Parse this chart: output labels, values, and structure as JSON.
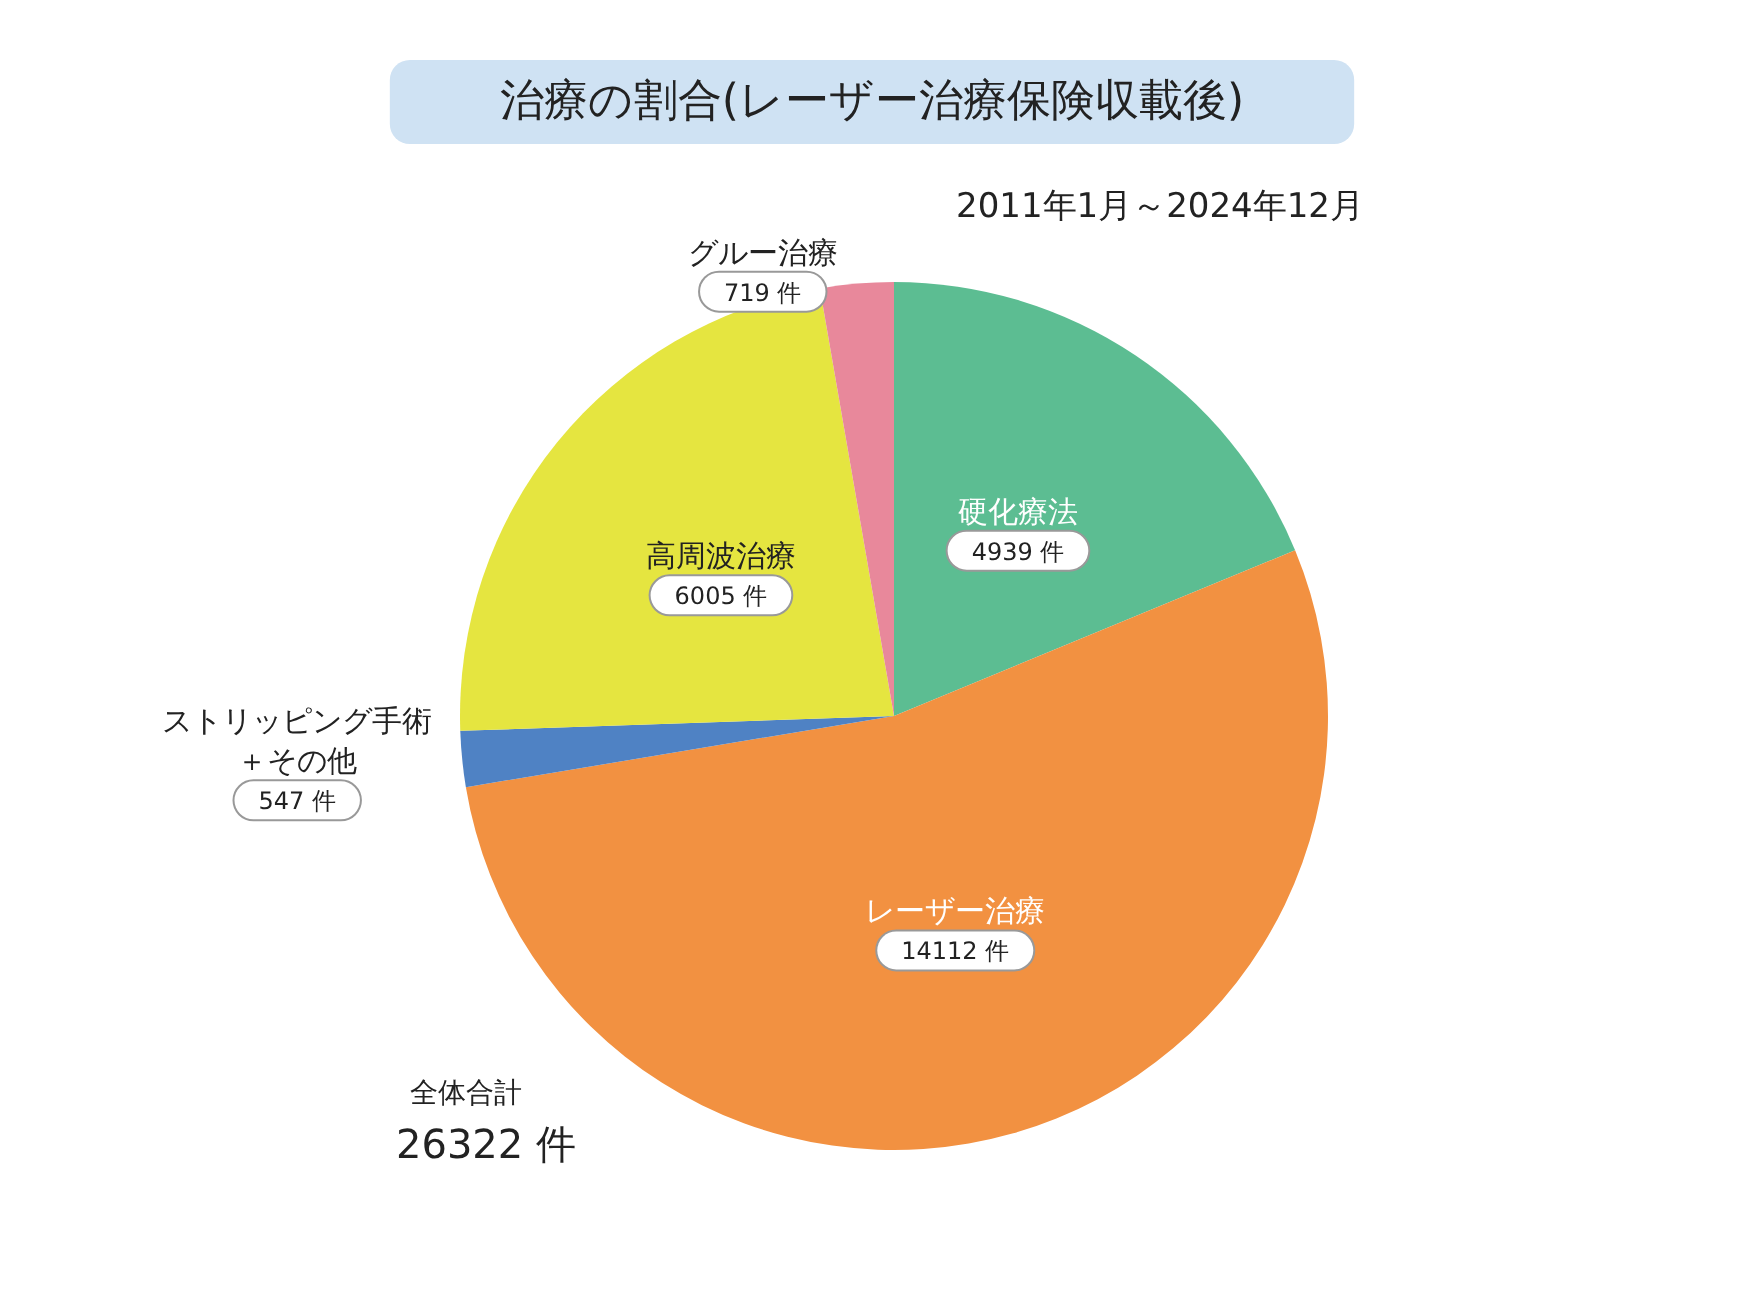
{
  "chart_data": {
    "type": "pie",
    "title": "治療の割合(レーザー治療保険収載後)",
    "subtitle": "2011年1月～2024年12月",
    "categories": [
      "硬化療法",
      "レーザー治療",
      "ストリッピング手術＋その他",
      "高周波治療",
      "グルー治療"
    ],
    "values": [
      4939,
      14112,
      547,
      6005,
      719
    ],
    "value_labels": [
      "4939 件",
      "14112 件",
      "547 件",
      "6005 件",
      "719 件"
    ],
    "colors": [
      "#5cbd92",
      "#f29141",
      "#4f82c4",
      "#e5e540",
      "#e8889b"
    ],
    "annotations": [
      "全体合計",
      "26322 件"
    ],
    "legend": false
  }
}
